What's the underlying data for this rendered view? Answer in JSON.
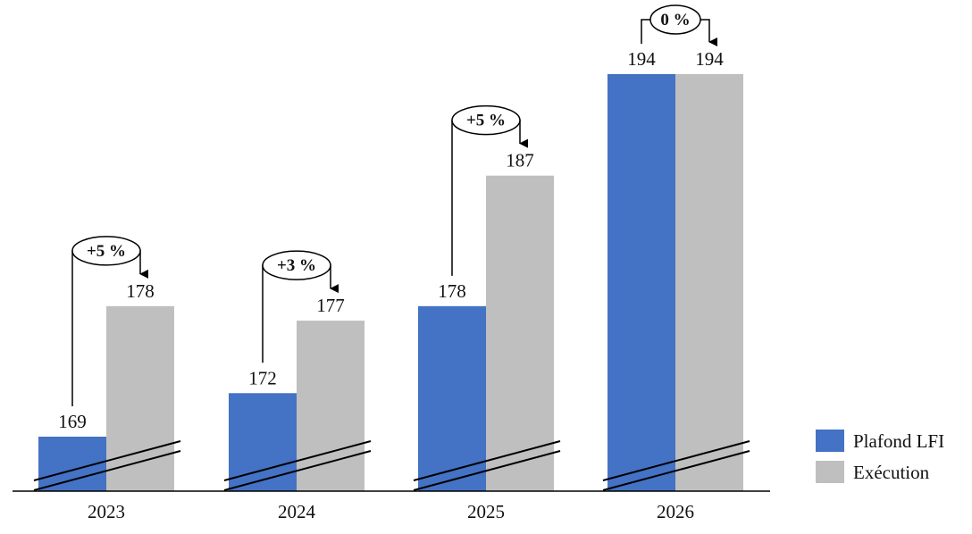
{
  "chart_data": {
    "type": "bar",
    "categories": [
      "2023",
      "2024",
      "2025",
      "2026"
    ],
    "series": [
      {
        "name": "Plafond LFI",
        "color": "#4472C4",
        "values": [
          169,
          172,
          178,
          194
        ]
      },
      {
        "name": "Exécution",
        "color": "#BFBFBF",
        "values": [
          178,
          177,
          187,
          194
        ]
      }
    ],
    "changes": [
      "+5 %",
      "+3 %",
      "+5 %",
      "0 %"
    ],
    "axis_break": true,
    "legend_position": "right-bottom",
    "grid": false
  }
}
